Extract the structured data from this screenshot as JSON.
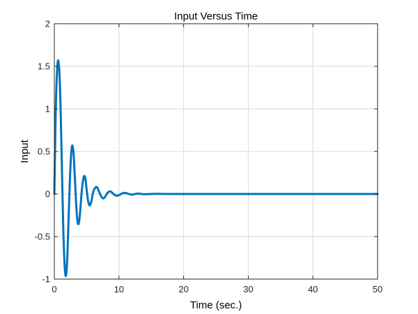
{
  "chart_data": {
    "type": "line",
    "title": "Input Versus Time",
    "xlabel": "Time (sec.)",
    "ylabel": "Input",
    "xlim": [
      0,
      50
    ],
    "ylim": [
      -1,
      2
    ],
    "x_ticks": [
      0,
      10,
      20,
      30,
      40,
      50
    ],
    "x_tick_labels": [
      "0",
      "10",
      "20",
      "30",
      "40",
      "50"
    ],
    "y_ticks": [
      -1,
      -0.5,
      0,
      0.5,
      1,
      1.5,
      2
    ],
    "y_tick_labels": [
      "-1",
      "-0.5",
      "0",
      "0.5",
      "1",
      "1.5",
      "2"
    ],
    "grid": true,
    "series": [
      {
        "color": "#0072bd",
        "x": [
          0,
          0.2,
          0.4,
          0.6,
          0.8,
          1.0,
          1.2,
          1.4,
          1.6,
          1.8,
          2.0,
          2.2,
          2.4,
          2.6,
          2.8,
          3.0,
          3.2,
          3.4,
          3.6,
          3.8,
          4.0,
          4.2,
          4.4,
          4.6,
          4.8,
          5.0,
          5.2,
          5.4,
          5.6,
          5.8,
          6.0,
          6.3,
          6.6,
          6.9,
          7.2,
          7.5,
          7.8,
          8.1,
          8.4,
          8.7,
          9.0,
          9.4,
          9.8,
          10.2,
          10.6,
          11.0,
          11.5,
          12.0,
          12.5,
          13.0,
          13.5,
          14.0,
          15.0,
          16.0,
          17.0,
          18.0,
          20.0,
          25.0,
          30.0,
          35.0,
          40.0,
          45.0,
          50.0
        ],
        "y": [
          0,
          0.9,
          1.42,
          1.57,
          1.4,
          0.9,
          0.2,
          -0.45,
          -0.85,
          -0.96,
          -0.75,
          -0.3,
          0.15,
          0.47,
          0.57,
          0.45,
          0.15,
          -0.15,
          -0.33,
          -0.34,
          -0.2,
          0.0,
          0.14,
          0.21,
          0.18,
          0.05,
          -0.07,
          -0.13,
          -0.12,
          -0.06,
          0.02,
          0.07,
          0.08,
          0.03,
          -0.02,
          -0.05,
          -0.04,
          0.0,
          0.025,
          0.03,
          0.01,
          -0.015,
          -0.02,
          -0.005,
          0.01,
          0.012,
          0.0,
          -0.008,
          0.0,
          0.005,
          0.0,
          -0.003,
          0.0,
          0.002,
          0.0,
          0.0,
          0.0,
          0.0,
          0.0,
          0.0,
          0.0,
          0.0,
          0.0
        ]
      }
    ]
  }
}
